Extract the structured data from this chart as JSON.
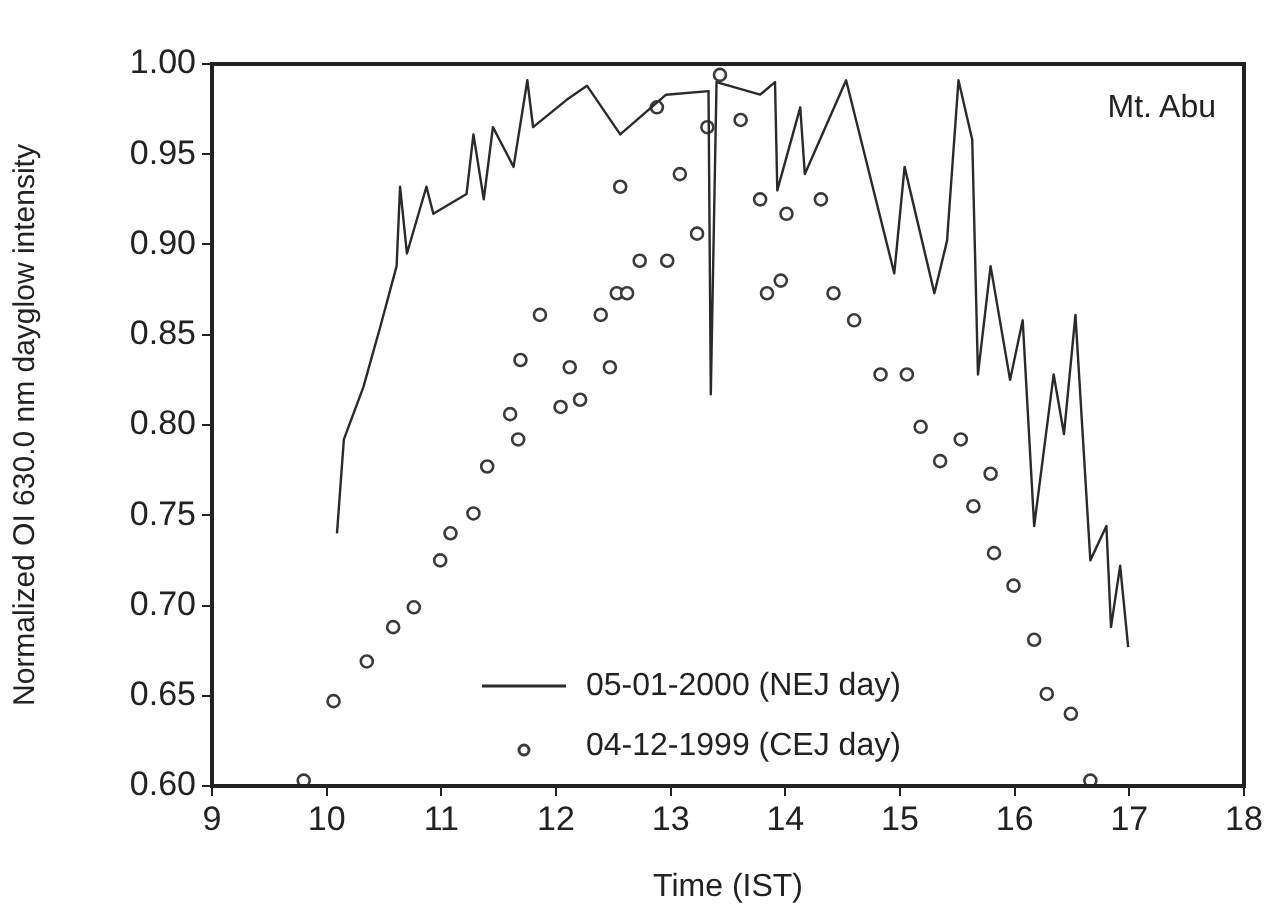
{
  "chart_data": {
    "type": "line",
    "xlabel": "Time (IST)",
    "ylabel": "Normalized OI 630.0 nm dayglow intensity",
    "annotations": [
      "Mt. Abu"
    ],
    "xlim": [
      9,
      18
    ],
    "xticks": [
      9,
      10,
      11,
      12,
      13,
      14,
      15,
      16,
      17,
      18
    ],
    "ylim": [
      0.6,
      1.0
    ],
    "yticks": [
      {
        "value": 0.6,
        "label": "0.60"
      },
      {
        "value": 0.65,
        "label": "0.65"
      },
      {
        "value": 0.7,
        "label": "0.70"
      },
      {
        "value": 0.75,
        "label": "0.75"
      },
      {
        "value": 0.8,
        "label": "0.80"
      },
      {
        "value": 0.85,
        "label": "0.85"
      },
      {
        "value": 0.9,
        "label": "0.90"
      },
      {
        "value": 0.95,
        "label": "0.95"
      },
      {
        "value": 1.0,
        "label": "1.00"
      }
    ],
    "grid": false,
    "legend": "bottom",
    "series": [
      {
        "name": "05-01-2000 (NEJ day)",
        "color": "#2a2a2a",
        "marker": "none",
        "x": [
          10.09,
          10.15,
          10.32,
          10.47,
          10.61,
          10.64,
          10.7,
          10.87,
          10.93,
          11.22,
          11.28,
          11.37,
          11.45,
          11.63,
          11.75,
          11.8,
          12.09,
          12.27,
          12.56,
          12.96,
          13.33,
          13.35,
          13.4,
          13.78,
          13.91,
          13.93,
          14.13,
          14.17,
          14.53,
          14.95,
          15.04,
          15.3,
          15.41,
          15.51,
          15.63,
          15.68,
          15.79,
          15.96,
          16.07,
          16.17,
          16.34,
          16.43,
          16.53,
          16.66,
          16.8,
          16.84,
          16.92,
          16.99
        ],
        "values": [
          0.74,
          0.792,
          0.821,
          0.855,
          0.888,
          0.932,
          0.895,
          0.932,
          0.917,
          0.928,
          0.961,
          0.925,
          0.965,
          0.943,
          0.991,
          0.965,
          0.98,
          0.988,
          0.961,
          0.983,
          0.985,
          0.817,
          0.99,
          0.983,
          0.99,
          0.93,
          0.976,
          0.939,
          0.991,
          0.884,
          0.943,
          0.873,
          0.902,
          0.991,
          0.958,
          0.828,
          0.888,
          0.825,
          0.858,
          0.744,
          0.828,
          0.795,
          0.861,
          0.725,
          0.744,
          0.688,
          0.722,
          0.677
        ]
      },
      {
        "name": "04-12-1999 (CEJ day)",
        "type": "scatter",
        "color": "#3a3a3a",
        "marker": "circle",
        "x": [
          9.8,
          10.06,
          10.35,
          10.58,
          10.76,
          10.99,
          11.08,
          11.28,
          11.4,
          11.6,
          11.67,
          11.69,
          11.86,
          12.04,
          12.12,
          12.21,
          12.39,
          12.47,
          12.53,
          12.56,
          12.62,
          12.73,
          12.88,
          12.97,
          13.08,
          13.23,
          13.32,
          13.43,
          13.61,
          13.78,
          13.84,
          13.96,
          14.01,
          14.31,
          14.42,
          14.6,
          14.83,
          15.06,
          15.18,
          15.35,
          15.53,
          15.64,
          15.79,
          15.82,
          15.99,
          16.17,
          16.28,
          16.49,
          16.66
        ],
        "values": [
          0.603,
          0.647,
          0.669,
          0.688,
          0.699,
          0.725,
          0.74,
          0.751,
          0.777,
          0.806,
          0.792,
          0.836,
          0.861,
          0.81,
          0.832,
          0.814,
          0.861,
          0.832,
          0.873,
          0.932,
          0.873,
          0.891,
          0.976,
          0.891,
          0.939,
          0.906,
          0.965,
          0.994,
          0.969,
          0.925,
          0.873,
          0.88,
          0.917,
          0.925,
          0.873,
          0.858,
          0.828,
          0.828,
          0.799,
          0.78,
          0.792,
          0.755,
          0.773,
          0.729,
          0.711,
          0.681,
          0.651,
          0.64,
          0.603
        ]
      }
    ]
  }
}
